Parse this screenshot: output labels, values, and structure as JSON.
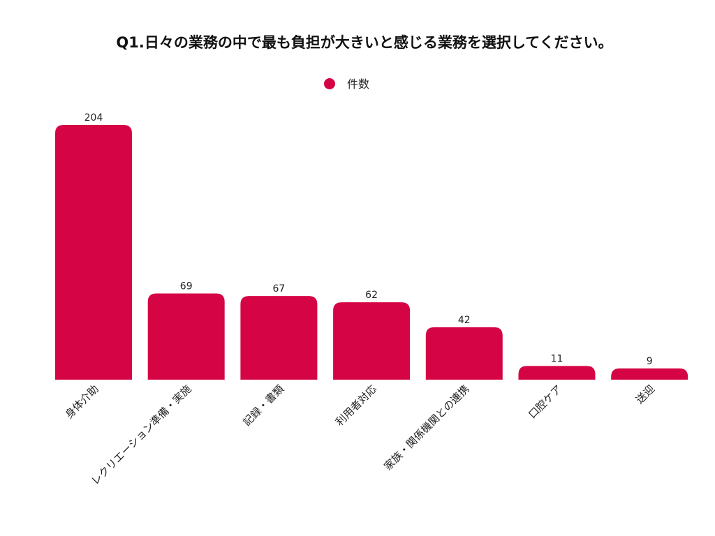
{
  "chart_data": {
    "type": "bar",
    "title": "Q1.日々の業務の中で最も負担が大きいと感じる業務を選択してください。",
    "xlabel": "",
    "ylabel": "",
    "categories": [
      "身体介助",
      "レクリエーション準備・実施",
      "記録・書類",
      "利用者対応",
      "家族・関係機関との連携",
      "口腔ケア",
      "送迎"
    ],
    "series": [
      {
        "name": "件数",
        "values": [
          204,
          69,
          67,
          62,
          42,
          11,
          9
        ],
        "color": "#d50545"
      }
    ],
    "ylim": [
      0,
      204
    ],
    "grid": false,
    "legend": "top-center",
    "data_labels": true
  }
}
